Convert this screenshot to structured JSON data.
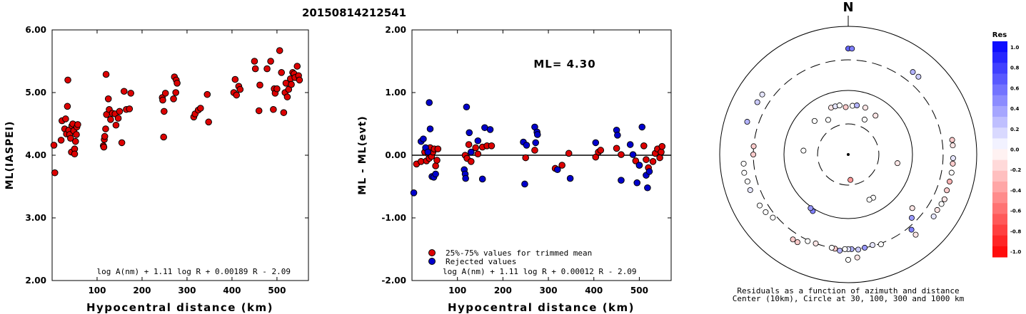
{
  "title": "20150814212541",
  "chart_data": [
    {
      "type": "scatter",
      "ylabel": "ML(IASPEI)",
      "xlabel": "Hypocentral distance (km)",
      "xlim": [
        0,
        570
      ],
      "ylim": [
        2.0,
        6.0
      ],
      "x_ticks": [
        100,
        200,
        300,
        400,
        500
      ],
      "y_ticks": [
        2.0,
        3.0,
        4.0,
        5.0,
        6.0
      ],
      "y_tick_labels": [
        "2.00",
        "3.00",
        "4.00",
        "5.00",
        "6.00"
      ],
      "formula": "log A(nm) + 1.11 log R + 0.00189 R - 2.09",
      "marker_color": "#dd0000",
      "points": [
        [
          4,
          4.16
        ],
        [
          6,
          3.72
        ],
        [
          20,
          4.24
        ],
        [
          22,
          4.55
        ],
        [
          28,
          4.42
        ],
        [
          30,
          4.58
        ],
        [
          32,
          4.34
        ],
        [
          34,
          4.78
        ],
        [
          35,
          5.2
        ],
        [
          37,
          4.4
        ],
        [
          39,
          4.33
        ],
        [
          41,
          4.27
        ],
        [
          43,
          4.05
        ],
        [
          44,
          4.47
        ],
        [
          46,
          4.5
        ],
        [
          48,
          4.39
        ],
        [
          50,
          4.1
        ],
        [
          50,
          4.02
        ],
        [
          52,
          4.22
        ],
        [
          54,
          4.33
        ],
        [
          55,
          4.45
        ],
        [
          57,
          4.49
        ],
        [
          114,
          4.15
        ],
        [
          115,
          4.13
        ],
        [
          116,
          4.25
        ],
        [
          117,
          4.3
        ],
        [
          119,
          4.42
        ],
        [
          120,
          5.29
        ],
        [
          121,
          4.65
        ],
        [
          125,
          4.9
        ],
        [
          127,
          4.73
        ],
        [
          130,
          4.57
        ],
        [
          134,
          4.67
        ],
        [
          140,
          4.66
        ],
        [
          142,
          4.48
        ],
        [
          147,
          4.59
        ],
        [
          150,
          4.7
        ],
        [
          155,
          4.2
        ],
        [
          160,
          5.02
        ],
        [
          165,
          4.73
        ],
        [
          172,
          4.74
        ],
        [
          175,
          4.99
        ],
        [
          245,
          4.92
        ],
        [
          246,
          4.88
        ],
        [
          248,
          4.29
        ],
        [
          249,
          4.7
        ],
        [
          252,
          4.99
        ],
        [
          270,
          4.9
        ],
        [
          272,
          5.25
        ],
        [
          275,
          5.0
        ],
        [
          276,
          5.2
        ],
        [
          278,
          5.15
        ],
        [
          315,
          4.61
        ],
        [
          318,
          4.66
        ],
        [
          325,
          4.72
        ],
        [
          330,
          4.75
        ],
        [
          345,
          4.97
        ],
        [
          348,
          4.53
        ],
        [
          404,
          5.0
        ],
        [
          407,
          5.21
        ],
        [
          410,
          4.96
        ],
        [
          415,
          5.1
        ],
        [
          418,
          5.05
        ],
        [
          450,
          5.5
        ],
        [
          452,
          5.38
        ],
        [
          460,
          4.71
        ],
        [
          462,
          5.12
        ],
        [
          478,
          5.38
        ],
        [
          486,
          5.5
        ],
        [
          492,
          4.73
        ],
        [
          494,
          5.06
        ],
        [
          496,
          4.99
        ],
        [
          500,
          5.06
        ],
        [
          506,
          5.67
        ],
        [
          510,
          5.32
        ],
        [
          515,
          4.68
        ],
        [
          518,
          5.0
        ],
        [
          520,
          5.15
        ],
        [
          523,
          4.93
        ],
        [
          526,
          5.05
        ],
        [
          530,
          5.22
        ],
        [
          532,
          5.13
        ],
        [
          535,
          5.32
        ],
        [
          538,
          5.3
        ],
        [
          540,
          5.24
        ],
        [
          545,
          5.42
        ],
        [
          548,
          5.27
        ],
        [
          550,
          5.2
        ]
      ]
    },
    {
      "type": "scatter",
      "ylabel": "ML - ML(evt)",
      "xlabel": "Hypocentral distance (km)",
      "xlim": [
        0,
        570
      ],
      "ylim": [
        -2.0,
        2.0
      ],
      "x_ticks": [
        100,
        200,
        300,
        400,
        500
      ],
      "y_ticks": [
        -2.0,
        -1.0,
        0.0,
        1.0,
        2.0
      ],
      "y_tick_labels": [
        "-2.00",
        "-1.00",
        "0.00",
        "1.00",
        "2.00"
      ],
      "ml_label": "ML= 4.30",
      "formula": "log A(nm) + 1.11 log R + 0.00012 R - 2.09",
      "legend": [
        {
          "label": "25%-75% values for trimmed mean",
          "color": "#dd0000"
        },
        {
          "label": "Rejected values",
          "color": "#0000cc"
        }
      ],
      "points_kept": [
        [
          10,
          -0.14
        ],
        [
          20,
          -0.1
        ],
        [
          28,
          0.05
        ],
        [
          32,
          -0.09
        ],
        [
          36,
          0.02
        ],
        [
          38,
          -0.05
        ],
        [
          40,
          0.12
        ],
        [
          43,
          -0.02
        ],
        [
          46,
          0.05
        ],
        [
          49,
          0.1
        ],
        [
          52,
          -0.17
        ],
        [
          55,
          -0.08
        ],
        [
          57,
          0.1
        ],
        [
          117,
          0.0
        ],
        [
          121,
          -0.05
        ],
        [
          125,
          0.17
        ],
        [
          130,
          -0.1
        ],
        [
          140,
          0.12
        ],
        [
          145,
          0.02
        ],
        [
          155,
          0.13
        ],
        [
          165,
          0.15
        ],
        [
          175,
          0.15
        ],
        [
          250,
          -0.04
        ],
        [
          270,
          0.08
        ],
        [
          315,
          -0.21
        ],
        [
          330,
          -0.16
        ],
        [
          345,
          0.03
        ],
        [
          404,
          -0.03
        ],
        [
          410,
          0.05
        ],
        [
          415,
          0.08
        ],
        [
          450,
          0.11
        ],
        [
          460,
          0.01
        ],
        [
          492,
          -0.09
        ],
        [
          500,
          -0.16
        ],
        [
          510,
          0.15
        ],
        [
          515,
          -0.07
        ],
        [
          520,
          -0.2
        ],
        [
          530,
          -0.1
        ],
        [
          535,
          0.03
        ],
        [
          540,
          0.1
        ],
        [
          545,
          -0.04
        ],
        [
          548,
          0.05
        ],
        [
          550,
          0.14
        ]
      ],
      "points_rejected": [
        [
          4,
          -0.6
        ],
        [
          20,
          0.22
        ],
        [
          25,
          0.26
        ],
        [
          30,
          0.12
        ],
        [
          35,
          0.05
        ],
        [
          38,
          0.84
        ],
        [
          40,
          0.42
        ],
        [
          44,
          -0.34
        ],
        [
          48,
          -0.35
        ],
        [
          52,
          -0.3
        ],
        [
          115,
          -0.23
        ],
        [
          117,
          -0.3
        ],
        [
          118,
          -0.37
        ],
        [
          120,
          0.77
        ],
        [
          126,
          0.36
        ],
        [
          130,
          0.05
        ],
        [
          145,
          0.23
        ],
        [
          155,
          -0.38
        ],
        [
          160,
          0.44
        ],
        [
          172,
          0.41
        ],
        [
          245,
          0.21
        ],
        [
          248,
          -0.46
        ],
        [
          252,
          0.16
        ],
        [
          270,
          0.45
        ],
        [
          272,
          0.2
        ],
        [
          275,
          0.37
        ],
        [
          276,
          0.33
        ],
        [
          320,
          -0.23
        ],
        [
          348,
          -0.37
        ],
        [
          404,
          0.2
        ],
        [
          450,
          0.4
        ],
        [
          452,
          0.32
        ],
        [
          460,
          -0.4
        ],
        [
          480,
          0.17
        ],
        [
          486,
          0.01
        ],
        [
          495,
          -0.44
        ],
        [
          500,
          -0.16
        ],
        [
          506,
          0.45
        ],
        [
          515,
          -0.32
        ],
        [
          518,
          -0.52
        ],
        [
          522,
          -0.26
        ]
      ]
    },
    {
      "type": "scatter",
      "subtype": "polar",
      "north_label": "N",
      "caption_line1": "Residuals as a function of azimuth and distance",
      "caption_line2": "Center (10km), Circle at 30, 100, 300 and 1000 km",
      "colorbar_title": "Res",
      "colorbar_ticks": [
        "1.0",
        "0.8",
        "0.6",
        "0.4",
        "0.2",
        "0.0",
        "-0.2",
        "-0.4",
        "-0.6",
        "-0.8",
        "-1.0"
      ],
      "colorbar_positive_color": "#0000ff",
      "colorbar_negative_color": "#ff0000",
      "circles_km": [
        30,
        100,
        300,
        1000
      ],
      "points_az_dist_res": [
        [
          0,
          450,
          0.6
        ],
        [
          2,
          450,
          0.5
        ],
        [
          38,
          430,
          0.3
        ],
        [
          42,
          430,
          0.2
        ],
        [
          -55,
          430,
          0.1
        ],
        [
          -60,
          430,
          0.2
        ],
        [
          -72,
          450,
          0.3
        ],
        [
          -20,
          60,
          -0.1
        ],
        [
          -15,
          60,
          0.1
        ],
        [
          -10,
          60,
          0.0
        ],
        [
          -3,
          55,
          -0.2
        ],
        [
          5,
          58,
          0.0
        ],
        [
          10,
          60,
          0.3
        ],
        [
          20,
          60,
          -0.1
        ],
        [
          35,
          55,
          -0.1
        ],
        [
          25,
          40,
          0.0
        ],
        [
          -30,
          42,
          0.0
        ],
        [
          -45,
          55,
          0.0
        ],
        [
          -85,
          50,
          0.0
        ],
        [
          100,
          60,
          -0.1
        ],
        [
          175,
          25,
          -0.4
        ],
        [
          130,
          200,
          -0.1
        ],
        [
          135,
          250,
          0.4
        ],
        [
          140,
          340,
          0.5
        ],
        [
          82,
          430,
          -0.2
        ],
        [
          85,
          430,
          -0.1
        ],
        [
          92,
          430,
          0.1
        ],
        [
          95,
          430,
          -0.2
        ],
        [
          100,
          430,
          0.0
        ],
        [
          105,
          430,
          -0.3
        ],
        [
          110,
          430,
          -0.2
        ],
        [
          115,
          450,
          -0.1
        ],
        [
          118,
          440,
          0.0
        ],
        [
          122,
          430,
          -0.1
        ],
        [
          126,
          440,
          0.1
        ],
        [
          140,
          430,
          -0.1
        ],
        [
          160,
          310,
          0.0
        ],
        [
          165,
          290,
          0.1
        ],
        [
          170,
          300,
          0.4
        ],
        [
          174,
          310,
          0.2
        ],
        [
          178,
          300,
          0.3
        ],
        [
          180,
          300,
          0.1
        ],
        [
          182,
          300,
          0.0
        ],
        [
          185,
          320,
          0.3
        ],
        [
          188,
          305,
          -0.2
        ],
        [
          190,
          300,
          0.0
        ],
        [
          175,
          410,
          -0.1
        ],
        [
          180,
          440,
          0.0
        ],
        [
          200,
          300,
          -0.1
        ],
        [
          205,
          310,
          0.0
        ],
        [
          210,
          380,
          -0.2
        ],
        [
          213,
          380,
          -0.2
        ],
        [
          230,
          340,
          0.0
        ],
        [
          235,
          370,
          0.0
        ],
        [
          240,
          390,
          0.0
        ],
        [
          250,
          420,
          0.1
        ],
        [
          255,
          420,
          0.0
        ],
        [
          260,
          440,
          0.0
        ],
        [
          265,
          430,
          0.0
        ],
        [
          270,
          300,
          -0.2
        ],
        [
          275,
          300,
          -0.2
        ],
        [
          212,
          110,
          0.5
        ],
        [
          215,
          105,
          0.4
        ],
        [
          150,
          60,
          0.0
        ],
        [
          155,
          60,
          0.0
        ]
      ]
    }
  ]
}
